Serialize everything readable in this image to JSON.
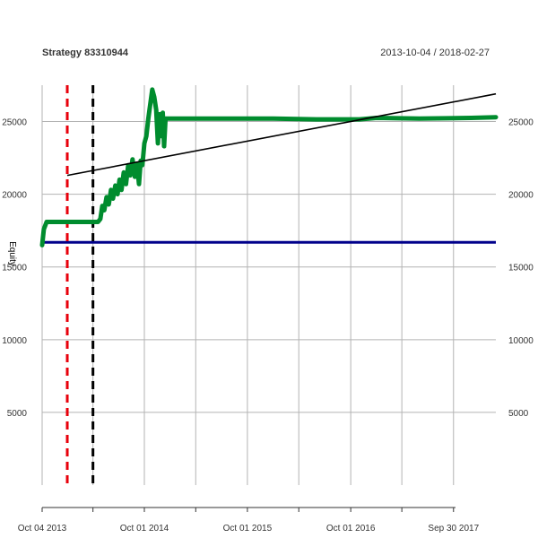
{
  "header": {
    "title": "Strategy 83310944",
    "date_range": "2013-10-04 / 2018-02-27"
  },
  "chart_data": {
    "type": "line",
    "title": "Strategy 83310944",
    "xlabel": "",
    "ylabel": "Equity",
    "xlim": [
      "2013-10-04",
      "2018-02-27"
    ],
    "ylim": [
      0,
      27500
    ],
    "y_ticks": [
      5000,
      10000,
      15000,
      20000,
      25000
    ],
    "y_tick_labels": [
      "5000",
      "10000",
      "15000",
      "20000",
      "25000"
    ],
    "x_ticks": [
      "2013-10-04",
      "2014-04-02",
      "2014-10-01",
      "2015-04-01",
      "2015-10-01",
      "2016-03-31",
      "2016-10-01",
      "2017-03-31",
      "2017-09-30"
    ],
    "x_tick_labels": [
      {
        "date": "2013-10-04",
        "label": "Oct 04 2013"
      },
      {
        "date": "2014-10-01",
        "label": "Oct 01 2014"
      },
      {
        "date": "2015-10-01",
        "label": "Oct 01 2015"
      },
      {
        "date": "2016-10-01",
        "label": "Oct 01 2016"
      },
      {
        "date": "2017-09-30",
        "label": "Sep 30 2017"
      }
    ],
    "grid": true,
    "series": [
      {
        "role": "equity",
        "color": "#008C2E",
        "points": [
          [
            "2013-10-04",
            16500
          ],
          [
            "2013-10-10",
            17600
          ],
          [
            "2013-10-20",
            18100
          ],
          [
            "2014-01-10",
            18100
          ],
          [
            "2014-04-20",
            18100
          ],
          [
            "2014-04-28",
            18300
          ],
          [
            "2014-05-05",
            19200
          ],
          [
            "2014-05-12",
            18900
          ],
          [
            "2014-05-20",
            19800
          ],
          [
            "2014-05-28",
            19300
          ],
          [
            "2014-06-05",
            20300
          ],
          [
            "2014-06-12",
            19700
          ],
          [
            "2014-06-20",
            20600
          ],
          [
            "2014-06-28",
            20000
          ],
          [
            "2014-07-05",
            21000
          ],
          [
            "2014-07-12",
            20300
          ],
          [
            "2014-07-20",
            21500
          ],
          [
            "2014-07-28",
            20700
          ],
          [
            "2014-08-05",
            22000
          ],
          [
            "2014-08-12",
            21300
          ],
          [
            "2014-08-20",
            22400
          ],
          [
            "2014-08-28",
            21200
          ],
          [
            "2014-09-05",
            22100
          ],
          [
            "2014-09-12",
            20700
          ],
          [
            "2014-09-18",
            22300
          ],
          [
            "2014-09-24",
            22000
          ],
          [
            "2014-10-01",
            23500
          ],
          [
            "2014-10-08",
            24000
          ],
          [
            "2014-10-15",
            25200
          ],
          [
            "2014-10-22",
            26200
          ],
          [
            "2014-10-29",
            27200
          ],
          [
            "2014-11-05",
            26700
          ],
          [
            "2014-11-12",
            25800
          ],
          [
            "2014-11-18",
            23500
          ],
          [
            "2014-11-24",
            25500
          ],
          [
            "2014-11-30",
            24000
          ],
          [
            "2014-12-05",
            25600
          ],
          [
            "2014-12-10",
            23300
          ],
          [
            "2014-12-15",
            25200
          ],
          [
            "2015-06-01",
            25200
          ],
          [
            "2016-01-01",
            25200
          ],
          [
            "2016-06-01",
            25150
          ],
          [
            "2016-11-01",
            25150
          ],
          [
            "2017-01-01",
            25250
          ],
          [
            "2017-06-01",
            25200
          ],
          [
            "2017-12-01",
            25250
          ],
          [
            "2018-02-27",
            25300
          ]
        ]
      },
      {
        "role": "baseline",
        "color": "#00008B",
        "points": [
          [
            "2013-10-04",
            16700
          ],
          [
            "2018-02-27",
            16700
          ]
        ]
      },
      {
        "role": "trend",
        "color": "#000000",
        "points": [
          [
            "2014-01-01",
            21300
          ],
          [
            "2018-02-27",
            26900
          ]
        ]
      }
    ],
    "vertical_markers": [
      {
        "date": "2014-01-01",
        "color": "#E8000B",
        "style": "dashed"
      },
      {
        "date": "2014-04-02",
        "color": "#000000",
        "style": "dashed"
      }
    ]
  }
}
